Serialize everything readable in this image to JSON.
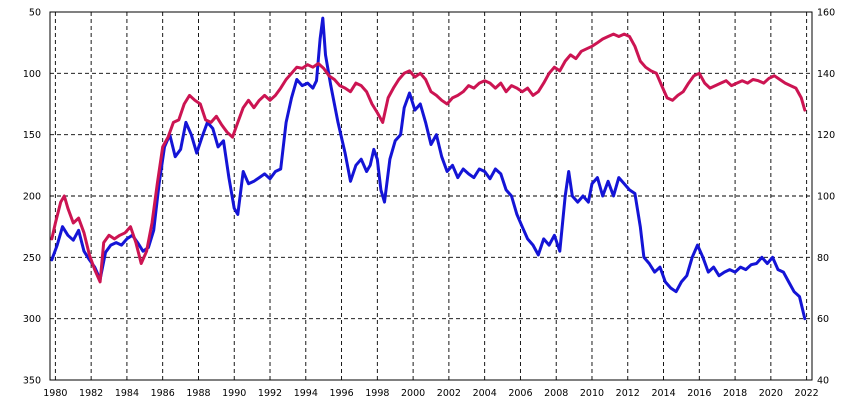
{
  "chart_data": {
    "type": "line",
    "title": "",
    "xlabel": "",
    "ylabel_left": "",
    "ylabel_right": "",
    "grid": true,
    "legend": "none",
    "xlim": [
      1979.7,
      2022.3
    ],
    "ylim_left": [
      50,
      350
    ],
    "left_axis_inverted": true,
    "ylim_right": [
      40,
      160
    ],
    "x_ticks": [
      "1980",
      "1982",
      "1984",
      "1986",
      "1988",
      "1990",
      "1992",
      "1994",
      "1996",
      "1998",
      "2000",
      "2002",
      "2004",
      "2006",
      "2008",
      "2010",
      "2012",
      "2014",
      "2016",
      "2018",
      "2020",
      "2022"
    ],
    "y_ticks_left": [
      "50",
      "100",
      "150",
      "200",
      "250",
      "300",
      "350"
    ],
    "y_ticks_right": [
      "160",
      "140",
      "120",
      "100",
      "80",
      "60",
      "40"
    ],
    "series": [
      {
        "axis": "left",
        "color": "#1414d6",
        "points": [
          [
            1979.8,
            252
          ],
          [
            1980.1,
            240
          ],
          [
            1980.4,
            225
          ],
          [
            1980.7,
            232
          ],
          [
            1981.0,
            236
          ],
          [
            1981.3,
            228
          ],
          [
            1981.6,
            245
          ],
          [
            1981.9,
            252
          ],
          [
            1982.2,
            258
          ],
          [
            1982.5,
            268
          ],
          [
            1982.8,
            246
          ],
          [
            1983.1,
            240
          ],
          [
            1983.4,
            238
          ],
          [
            1983.7,
            240
          ],
          [
            1984.0,
            235
          ],
          [
            1984.3,
            232
          ],
          [
            1984.6,
            238
          ],
          [
            1984.9,
            245
          ],
          [
            1985.2,
            242
          ],
          [
            1985.5,
            228
          ],
          [
            1985.8,
            190
          ],
          [
            1986.1,
            160
          ],
          [
            1986.4,
            150
          ],
          [
            1986.7,
            168
          ],
          [
            1987.0,
            162
          ],
          [
            1987.3,
            140
          ],
          [
            1987.6,
            150
          ],
          [
            1987.9,
            165
          ],
          [
            1988.2,
            152
          ],
          [
            1988.5,
            140
          ],
          [
            1988.8,
            145
          ],
          [
            1989.1,
            160
          ],
          [
            1989.4,
            155
          ],
          [
            1989.7,
            185
          ],
          [
            1990.0,
            210
          ],
          [
            1990.2,
            215
          ],
          [
            1990.5,
            180
          ],
          [
            1990.8,
            190
          ],
          [
            1991.1,
            188
          ],
          [
            1991.4,
            185
          ],
          [
            1991.7,
            182
          ],
          [
            1992.0,
            186
          ],
          [
            1992.3,
            180
          ],
          [
            1992.6,
            178
          ],
          [
            1992.9,
            140
          ],
          [
            1993.2,
            120
          ],
          [
            1993.5,
            105
          ],
          [
            1993.8,
            110
          ],
          [
            1994.1,
            108
          ],
          [
            1994.4,
            112
          ],
          [
            1994.6,
            106
          ],
          [
            1994.8,
            72
          ],
          [
            1994.95,
            55
          ],
          [
            1995.1,
            85
          ],
          [
            1995.4,
            110
          ],
          [
            1995.8,
            140
          ],
          [
            1996.2,
            165
          ],
          [
            1996.5,
            188
          ],
          [
            1996.8,
            175
          ],
          [
            1997.1,
            170
          ],
          [
            1997.4,
            180
          ],
          [
            1997.6,
            175
          ],
          [
            1997.8,
            162
          ],
          [
            1998.0,
            170
          ],
          [
            1998.2,
            195
          ],
          [
            1998.4,
            205
          ],
          [
            1998.7,
            170
          ],
          [
            1999.0,
            155
          ],
          [
            1999.3,
            150
          ],
          [
            1999.5,
            128
          ],
          [
            1999.8,
            116
          ],
          [
            2000.1,
            130
          ],
          [
            2000.4,
            125
          ],
          [
            2000.7,
            140
          ],
          [
            2001.0,
            158
          ],
          [
            2001.3,
            150
          ],
          [
            2001.6,
            168
          ],
          [
            2001.9,
            180
          ],
          [
            2002.2,
            175
          ],
          [
            2002.5,
            185
          ],
          [
            2002.8,
            178
          ],
          [
            2003.1,
            182
          ],
          [
            2003.4,
            185
          ],
          [
            2003.7,
            178
          ],
          [
            2004.0,
            180
          ],
          [
            2004.3,
            186
          ],
          [
            2004.6,
            178
          ],
          [
            2004.9,
            182
          ],
          [
            2005.2,
            195
          ],
          [
            2005.5,
            200
          ],
          [
            2005.8,
            215
          ],
          [
            2006.1,
            225
          ],
          [
            2006.4,
            235
          ],
          [
            2006.7,
            240
          ],
          [
            2007.0,
            248
          ],
          [
            2007.3,
            235
          ],
          [
            2007.6,
            240
          ],
          [
            2007.9,
            232
          ],
          [
            2008.2,
            245
          ],
          [
            2008.5,
            200
          ],
          [
            2008.7,
            180
          ],
          [
            2008.9,
            200
          ],
          [
            2009.2,
            205
          ],
          [
            2009.5,
            200
          ],
          [
            2009.8,
            205
          ],
          [
            2010.0,
            190
          ],
          [
            2010.3,
            185
          ],
          [
            2010.6,
            200
          ],
          [
            2010.9,
            188
          ],
          [
            2011.2,
            200
          ],
          [
            2011.5,
            185
          ],
          [
            2011.8,
            190
          ],
          [
            2012.1,
            195
          ],
          [
            2012.4,
            198
          ],
          [
            2012.7,
            225
          ],
          [
            2012.9,
            250
          ],
          [
            2013.2,
            255
          ],
          [
            2013.5,
            262
          ],
          [
            2013.8,
            258
          ],
          [
            2014.1,
            270
          ],
          [
            2014.4,
            275
          ],
          [
            2014.7,
            278
          ],
          [
            2015.0,
            270
          ],
          [
            2015.3,
            265
          ],
          [
            2015.6,
            250
          ],
          [
            2015.9,
            240
          ],
          [
            2016.2,
            250
          ],
          [
            2016.5,
            262
          ],
          [
            2016.8,
            258
          ],
          [
            2017.1,
            265
          ],
          [
            2017.4,
            262
          ],
          [
            2017.7,
            260
          ],
          [
            2018.0,
            262
          ],
          [
            2018.3,
            258
          ],
          [
            2018.6,
            260
          ],
          [
            2018.9,
            256
          ],
          [
            2019.2,
            255
          ],
          [
            2019.5,
            250
          ],
          [
            2019.8,
            255
          ],
          [
            2020.1,
            250
          ],
          [
            2020.4,
            260
          ],
          [
            2020.7,
            262
          ],
          [
            2021.0,
            270
          ],
          [
            2021.3,
            278
          ],
          [
            2021.6,
            282
          ],
          [
            2021.9,
            300
          ]
        ]
      },
      {
        "axis": "left",
        "color": "#cc1452",
        "points": [
          [
            1979.8,
            235
          ],
          [
            1980.0,
            222
          ],
          [
            1980.3,
            205
          ],
          [
            1980.5,
            200
          ],
          [
            1980.7,
            210
          ],
          [
            1981.0,
            222
          ],
          [
            1981.3,
            218
          ],
          [
            1981.6,
            230
          ],
          [
            1981.9,
            248
          ],
          [
            1982.2,
            260
          ],
          [
            1982.5,
            270
          ],
          [
            1982.7,
            238
          ],
          [
            1983.0,
            232
          ],
          [
            1983.3,
            235
          ],
          [
            1983.6,
            232
          ],
          [
            1983.9,
            230
          ],
          [
            1984.2,
            225
          ],
          [
            1984.5,
            238
          ],
          [
            1984.8,
            255
          ],
          [
            1985.1,
            245
          ],
          [
            1985.4,
            222
          ],
          [
            1985.7,
            190
          ],
          [
            1986.0,
            160
          ],
          [
            1986.3,
            152
          ],
          [
            1986.6,
            140
          ],
          [
            1986.9,
            138
          ],
          [
            1987.2,
            125
          ],
          [
            1987.5,
            118
          ],
          [
            1987.8,
            122
          ],
          [
            1988.1,
            125
          ],
          [
            1988.4,
            138
          ],
          [
            1988.7,
            140
          ],
          [
            1989.0,
            135
          ],
          [
            1989.3,
            142
          ],
          [
            1989.6,
            148
          ],
          [
            1989.9,
            152
          ],
          [
            1990.2,
            140
          ],
          [
            1990.5,
            128
          ],
          [
            1990.8,
            122
          ],
          [
            1991.1,
            128
          ],
          [
            1991.4,
            122
          ],
          [
            1991.7,
            118
          ],
          [
            1992.0,
            122
          ],
          [
            1992.3,
            118
          ],
          [
            1992.6,
            112
          ],
          [
            1992.9,
            105
          ],
          [
            1993.2,
            100
          ],
          [
            1993.5,
            95
          ],
          [
            1993.8,
            96
          ],
          [
            1994.1,
            93
          ],
          [
            1994.4,
            95
          ],
          [
            1994.7,
            92
          ],
          [
            1995.0,
            96
          ],
          [
            1995.3,
            102
          ],
          [
            1995.6,
            105
          ],
          [
            1995.9,
            110
          ],
          [
            1996.2,
            112
          ],
          [
            1996.5,
            115
          ],
          [
            1996.8,
            108
          ],
          [
            1997.1,
            110
          ],
          [
            1997.4,
            115
          ],
          [
            1997.7,
            125
          ],
          [
            1998.0,
            132
          ],
          [
            1998.3,
            140
          ],
          [
            1998.6,
            120
          ],
          [
            1998.9,
            112
          ],
          [
            1999.2,
            105
          ],
          [
            1999.5,
            100
          ],
          [
            1999.8,
            98
          ],
          [
            2000.1,
            103
          ],
          [
            2000.4,
            100
          ],
          [
            2000.7,
            105
          ],
          [
            2001.0,
            115
          ],
          [
            2001.3,
            118
          ],
          [
            2001.6,
            122
          ],
          [
            2001.9,
            125
          ],
          [
            2002.2,
            120
          ],
          [
            2002.5,
            118
          ],
          [
            2002.8,
            115
          ],
          [
            2003.1,
            110
          ],
          [
            2003.4,
            112
          ],
          [
            2003.7,
            108
          ],
          [
            2004.0,
            106
          ],
          [
            2004.3,
            108
          ],
          [
            2004.6,
            112
          ],
          [
            2004.9,
            108
          ],
          [
            2005.2,
            115
          ],
          [
            2005.5,
            110
          ],
          [
            2005.8,
            112
          ],
          [
            2006.1,
            115
          ],
          [
            2006.4,
            112
          ],
          [
            2006.7,
            118
          ],
          [
            2007.0,
            115
          ],
          [
            2007.3,
            108
          ],
          [
            2007.6,
            100
          ],
          [
            2007.9,
            95
          ],
          [
            2008.2,
            98
          ],
          [
            2008.5,
            90
          ],
          [
            2008.8,
            85
          ],
          [
            2009.1,
            88
          ],
          [
            2009.4,
            82
          ],
          [
            2009.7,
            80
          ],
          [
            2010.0,
            78
          ],
          [
            2010.3,
            75
          ],
          [
            2010.6,
            72
          ],
          [
            2010.9,
            70
          ],
          [
            2011.2,
            68
          ],
          [
            2011.5,
            70
          ],
          [
            2011.8,
            68
          ],
          [
            2012.1,
            70
          ],
          [
            2012.4,
            78
          ],
          [
            2012.7,
            90
          ],
          [
            2013.0,
            95
          ],
          [
            2013.3,
            98
          ],
          [
            2013.6,
            100
          ],
          [
            2013.9,
            110
          ],
          [
            2014.2,
            120
          ],
          [
            2014.5,
            122
          ],
          [
            2014.8,
            118
          ],
          [
            2015.1,
            115
          ],
          [
            2015.4,
            108
          ],
          [
            2015.7,
            102
          ],
          [
            2016.0,
            100
          ],
          [
            2016.3,
            108
          ],
          [
            2016.6,
            112
          ],
          [
            2016.9,
            110
          ],
          [
            2017.2,
            108
          ],
          [
            2017.5,
            106
          ],
          [
            2017.8,
            110
          ],
          [
            2018.1,
            108
          ],
          [
            2018.4,
            106
          ],
          [
            2018.7,
            108
          ],
          [
            2019.0,
            105
          ],
          [
            2019.3,
            106
          ],
          [
            2019.6,
            108
          ],
          [
            2019.9,
            104
          ],
          [
            2020.2,
            102
          ],
          [
            2020.5,
            105
          ],
          [
            2020.8,
            108
          ],
          [
            2021.1,
            110
          ],
          [
            2021.4,
            112
          ],
          [
            2021.7,
            120
          ],
          [
            2021.9,
            130
          ]
        ]
      }
    ]
  }
}
